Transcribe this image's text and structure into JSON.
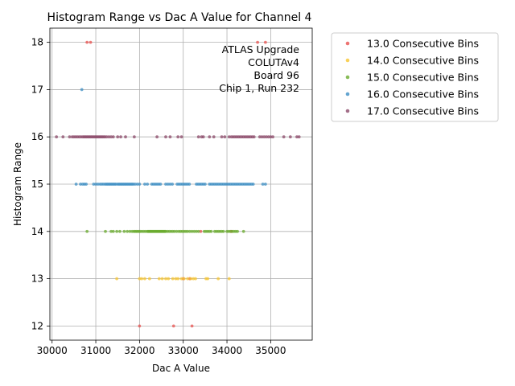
{
  "chart_data": {
    "type": "scatter",
    "title": "Histogram Range vs Dac A Value for Channel 4",
    "xlabel": "Dac A Value",
    "ylabel": "Histogram Range",
    "xlim": [
      29950,
      35950
    ],
    "ylim": [
      11.7,
      18.3
    ],
    "xticks": [
      30000,
      31000,
      32000,
      33000,
      34000,
      35000
    ],
    "yticks": [
      12,
      13,
      14,
      15,
      16,
      17,
      18
    ],
    "grid": true,
    "legend_position": "outside-right",
    "annotation": [
      "ATLAS Upgrade",
      "COLUTAv4",
      "Board 96",
      "Chip 1, Run 232"
    ],
    "series": [
      {
        "name": "13.0 Consecutive Bins",
        "color": "#e8514f",
        "points": [
          [
            32000,
            12
          ],
          [
            32780,
            12
          ],
          [
            33200,
            12
          ],
          [
            30800,
            18
          ],
          [
            30880,
            18
          ],
          [
            34700,
            18
          ],
          [
            34880,
            18
          ],
          [
            33000,
            13
          ],
          [
            33150,
            13
          ],
          [
            33400,
            14
          ],
          [
            34100,
            14
          ]
        ]
      },
      {
        "name": "14.0 Consecutive Bins",
        "color": "#f7c531",
        "points": [
          [
            31480,
            13
          ],
          [
            32000,
            13
          ],
          [
            32050,
            13
          ],
          [
            32120,
            13
          ],
          [
            32230,
            13
          ],
          [
            32450,
            13
          ],
          [
            32520,
            13
          ],
          [
            32600,
            13
          ],
          [
            32660,
            13
          ],
          [
            32760,
            13
          ],
          [
            32830,
            13
          ],
          [
            32880,
            13
          ],
          [
            32960,
            13
          ],
          [
            33020,
            13
          ],
          [
            33100,
            13
          ],
          [
            33170,
            13
          ],
          [
            33230,
            13
          ],
          [
            33280,
            13
          ],
          [
            33520,
            13
          ],
          [
            33560,
            13
          ],
          [
            33800,
            13
          ],
          [
            34050,
            13
          ]
        ]
      },
      {
        "name": "15.0 Consecutive Bins",
        "color": "#6aab2e",
        "points": [
          [
            30800,
            14
          ],
          [
            31220,
            14
          ],
          [
            31350,
            14
          ],
          [
            31400,
            14
          ],
          [
            31480,
            14
          ],
          [
            31550,
            14
          ],
          [
            31650,
            14
          ],
          [
            31720,
            14
          ],
          [
            31780,
            14
          ],
          [
            31830,
            14
          ],
          [
            31870,
            14
          ],
          [
            31900,
            14
          ],
          [
            31930,
            14
          ],
          [
            31960,
            14
          ],
          [
            31990,
            14
          ],
          [
            32020,
            14
          ],
          [
            32060,
            14
          ],
          [
            32100,
            14
          ],
          [
            32140,
            14
          ],
          [
            32180,
            14
          ],
          [
            32200,
            14
          ],
          [
            32220,
            14
          ],
          [
            32240,
            14
          ],
          [
            32260,
            14
          ],
          [
            32280,
            14
          ],
          [
            32300,
            14
          ],
          [
            32320,
            14
          ],
          [
            32340,
            14
          ],
          [
            32360,
            14
          ],
          [
            32380,
            14
          ],
          [
            32400,
            14
          ],
          [
            32420,
            14
          ],
          [
            32440,
            14
          ],
          [
            32460,
            14
          ],
          [
            32480,
            14
          ],
          [
            32500,
            14
          ],
          [
            32520,
            14
          ],
          [
            32540,
            14
          ],
          [
            32560,
            14
          ],
          [
            32580,
            14
          ],
          [
            32600,
            14
          ],
          [
            32640,
            14
          ],
          [
            32680,
            14
          ],
          [
            32720,
            14
          ],
          [
            32760,
            14
          ],
          [
            32800,
            14
          ],
          [
            32850,
            14
          ],
          [
            32900,
            14
          ],
          [
            32940,
            14
          ],
          [
            32980,
            14
          ],
          [
            33020,
            14
          ],
          [
            33060,
            14
          ],
          [
            33100,
            14
          ],
          [
            33150,
            14
          ],
          [
            33200,
            14
          ],
          [
            33250,
            14
          ],
          [
            33300,
            14
          ],
          [
            33350,
            14
          ],
          [
            33480,
            14
          ],
          [
            33520,
            14
          ],
          [
            33560,
            14
          ],
          [
            33600,
            14
          ],
          [
            33640,
            14
          ],
          [
            33720,
            14
          ],
          [
            33760,
            14
          ],
          [
            33800,
            14
          ],
          [
            33840,
            14
          ],
          [
            33880,
            14
          ],
          [
            33920,
            14
          ],
          [
            34000,
            14
          ],
          [
            34040,
            14
          ],
          [
            34080,
            14
          ],
          [
            34120,
            14
          ],
          [
            34160,
            14
          ],
          [
            34200,
            14
          ],
          [
            34240,
            14
          ],
          [
            34380,
            14
          ]
        ]
      },
      {
        "name": "16.0 Consecutive Bins",
        "color": "#3d8fc4",
        "points": [
          [
            30680,
            17
          ],
          [
            30550,
            15
          ],
          [
            30650,
            15
          ],
          [
            30700,
            15
          ],
          [
            30740,
            15
          ],
          [
            30780,
            15
          ],
          [
            30950,
            15
          ],
          [
            31000,
            15
          ],
          [
            31050,
            15
          ],
          [
            31100,
            15
          ],
          [
            31140,
            15
          ],
          [
            31180,
            15
          ],
          [
            31220,
            15
          ],
          [
            31250,
            15
          ],
          [
            31280,
            15
          ],
          [
            31310,
            15
          ],
          [
            31340,
            15
          ],
          [
            31370,
            15
          ],
          [
            31400,
            15
          ],
          [
            31430,
            15
          ],
          [
            31460,
            15
          ],
          [
            31500,
            15
          ],
          [
            31530,
            15
          ],
          [
            31560,
            15
          ],
          [
            31590,
            15
          ],
          [
            31620,
            15
          ],
          [
            31650,
            15
          ],
          [
            31680,
            15
          ],
          [
            31710,
            15
          ],
          [
            31740,
            15
          ],
          [
            31770,
            15
          ],
          [
            31800,
            15
          ],
          [
            31830,
            15
          ],
          [
            31860,
            15
          ],
          [
            31900,
            15
          ],
          [
            31950,
            15
          ],
          [
            32000,
            15
          ],
          [
            32120,
            15
          ],
          [
            32180,
            15
          ],
          [
            32280,
            15
          ],
          [
            32320,
            15
          ],
          [
            32360,
            15
          ],
          [
            32400,
            15
          ],
          [
            32440,
            15
          ],
          [
            32480,
            15
          ],
          [
            32600,
            15
          ],
          [
            32650,
            15
          ],
          [
            32700,
            15
          ],
          [
            32750,
            15
          ],
          [
            32860,
            15
          ],
          [
            32900,
            15
          ],
          [
            32940,
            15
          ],
          [
            32980,
            15
          ],
          [
            33020,
            15
          ],
          [
            33060,
            15
          ],
          [
            33100,
            15
          ],
          [
            33140,
            15
          ],
          [
            33300,
            15
          ],
          [
            33340,
            15
          ],
          [
            33380,
            15
          ],
          [
            33420,
            15
          ],
          [
            33460,
            15
          ],
          [
            33500,
            15
          ],
          [
            33600,
            15
          ],
          [
            33640,
            15
          ],
          [
            33680,
            15
          ],
          [
            33720,
            15
          ],
          [
            33760,
            15
          ],
          [
            33800,
            15
          ],
          [
            33840,
            15
          ],
          [
            33880,
            15
          ],
          [
            33920,
            15
          ],
          [
            33960,
            15
          ],
          [
            34000,
            15
          ],
          [
            34040,
            15
          ],
          [
            34080,
            15
          ],
          [
            34120,
            15
          ],
          [
            34160,
            15
          ],
          [
            34200,
            15
          ],
          [
            34240,
            15
          ],
          [
            34280,
            15
          ],
          [
            34320,
            15
          ],
          [
            34360,
            15
          ],
          [
            34400,
            15
          ],
          [
            34440,
            15
          ],
          [
            34480,
            15
          ],
          [
            34520,
            15
          ],
          [
            34560,
            15
          ],
          [
            34600,
            15
          ],
          [
            34820,
            15
          ],
          [
            34880,
            15
          ]
        ]
      },
      {
        "name": "17.0 Consecutive Bins",
        "color": "#8c4a6a",
        "points": [
          [
            30100,
            16
          ],
          [
            30250,
            16
          ],
          [
            30400,
            16
          ],
          [
            30460,
            16
          ],
          [
            30500,
            16
          ],
          [
            30540,
            16
          ],
          [
            30580,
            16
          ],
          [
            30620,
            16
          ],
          [
            30660,
            16
          ],
          [
            30700,
            16
          ],
          [
            30730,
            16
          ],
          [
            30760,
            16
          ],
          [
            30790,
            16
          ],
          [
            30820,
            16
          ],
          [
            30850,
            16
          ],
          [
            30880,
            16
          ],
          [
            30910,
            16
          ],
          [
            30940,
            16
          ],
          [
            30970,
            16
          ],
          [
            31000,
            16
          ],
          [
            31030,
            16
          ],
          [
            31060,
            16
          ],
          [
            31090,
            16
          ],
          [
            31120,
            16
          ],
          [
            31150,
            16
          ],
          [
            31180,
            16
          ],
          [
            31210,
            16
          ],
          [
            31250,
            16
          ],
          [
            31300,
            16
          ],
          [
            31350,
            16
          ],
          [
            31400,
            16
          ],
          [
            31500,
            16
          ],
          [
            31570,
            16
          ],
          [
            31680,
            16
          ],
          [
            31880,
            16
          ],
          [
            32400,
            16
          ],
          [
            32600,
            16
          ],
          [
            32700,
            16
          ],
          [
            32880,
            16
          ],
          [
            32960,
            16
          ],
          [
            33350,
            16
          ],
          [
            33420,
            16
          ],
          [
            33460,
            16
          ],
          [
            33600,
            16
          ],
          [
            33700,
            16
          ],
          [
            33880,
            16
          ],
          [
            33950,
            16
          ],
          [
            34050,
            16
          ],
          [
            34100,
            16
          ],
          [
            34140,
            16
          ],
          [
            34180,
            16
          ],
          [
            34220,
            16
          ],
          [
            34260,
            16
          ],
          [
            34300,
            16
          ],
          [
            34340,
            16
          ],
          [
            34380,
            16
          ],
          [
            34420,
            16
          ],
          [
            34460,
            16
          ],
          [
            34500,
            16
          ],
          [
            34540,
            16
          ],
          [
            34580,
            16
          ],
          [
            34620,
            16
          ],
          [
            34750,
            16
          ],
          [
            34800,
            16
          ],
          [
            34850,
            16
          ],
          [
            34900,
            16
          ],
          [
            34950,
            16
          ],
          [
            35000,
            16
          ],
          [
            35050,
            16
          ],
          [
            35300,
            16
          ],
          [
            35450,
            16
          ],
          [
            35600,
            16
          ],
          [
            35650,
            16
          ]
        ]
      }
    ]
  }
}
